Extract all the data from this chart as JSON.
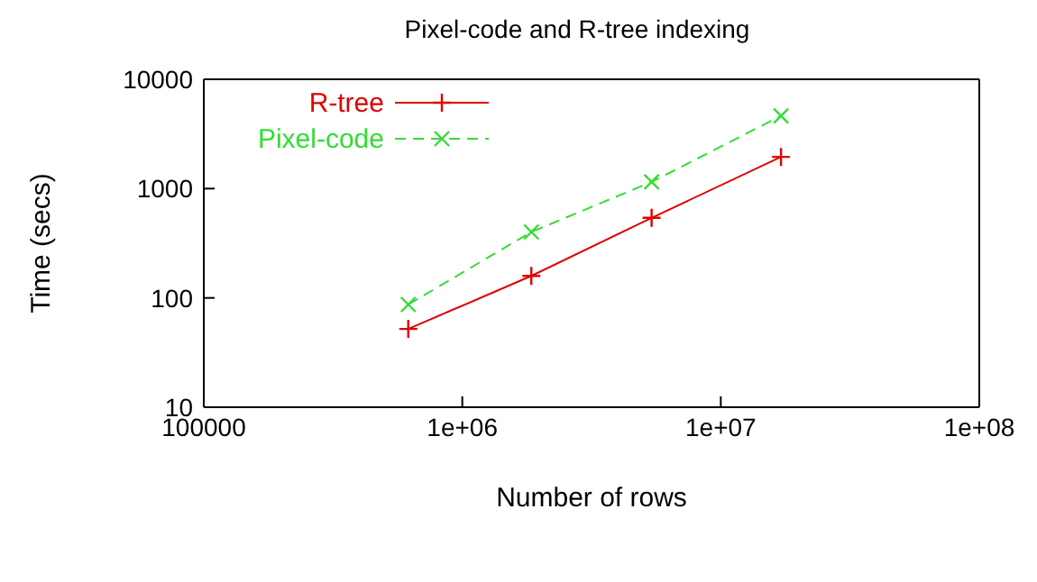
{
  "chart_data": {
    "type": "line",
    "title": "Pixel-code and R-tree indexing",
    "xlabel": "Number of rows",
    "ylabel": "Time (secs)",
    "log": "xy",
    "legend": "top left",
    "xlim": [
      100000,
      100000000
    ],
    "xticks": [
      100000,
      {
        "value": 1000000,
        "label": "1e+06"
      },
      {
        "value": 10000000,
        "label": "1e+07"
      },
      {
        "value": 100000000,
        "label": "1e+08"
      }
    ],
    "ylim": [
      10,
      10000
    ],
    "yticks": [
      10,
      100,
      1000,
      10000
    ],
    "series": [
      {
        "name": "R-tree",
        "color": "#e00000",
        "line_style": "solid",
        "marker": "cross",
        "x": [
          618000,
          1850000,
          5400000,
          17100000
        ],
        "values": [
          52,
          159,
          540,
          1950
        ]
      },
      {
        "name": "Pixel-code",
        "color": "#33dd33",
        "line_style": "dashed",
        "marker": "cross",
        "x": [
          618000,
          1850000,
          5400000,
          17100000
        ],
        "values": [
          87,
          401,
          1150,
          4630
        ]
      }
    ]
  }
}
